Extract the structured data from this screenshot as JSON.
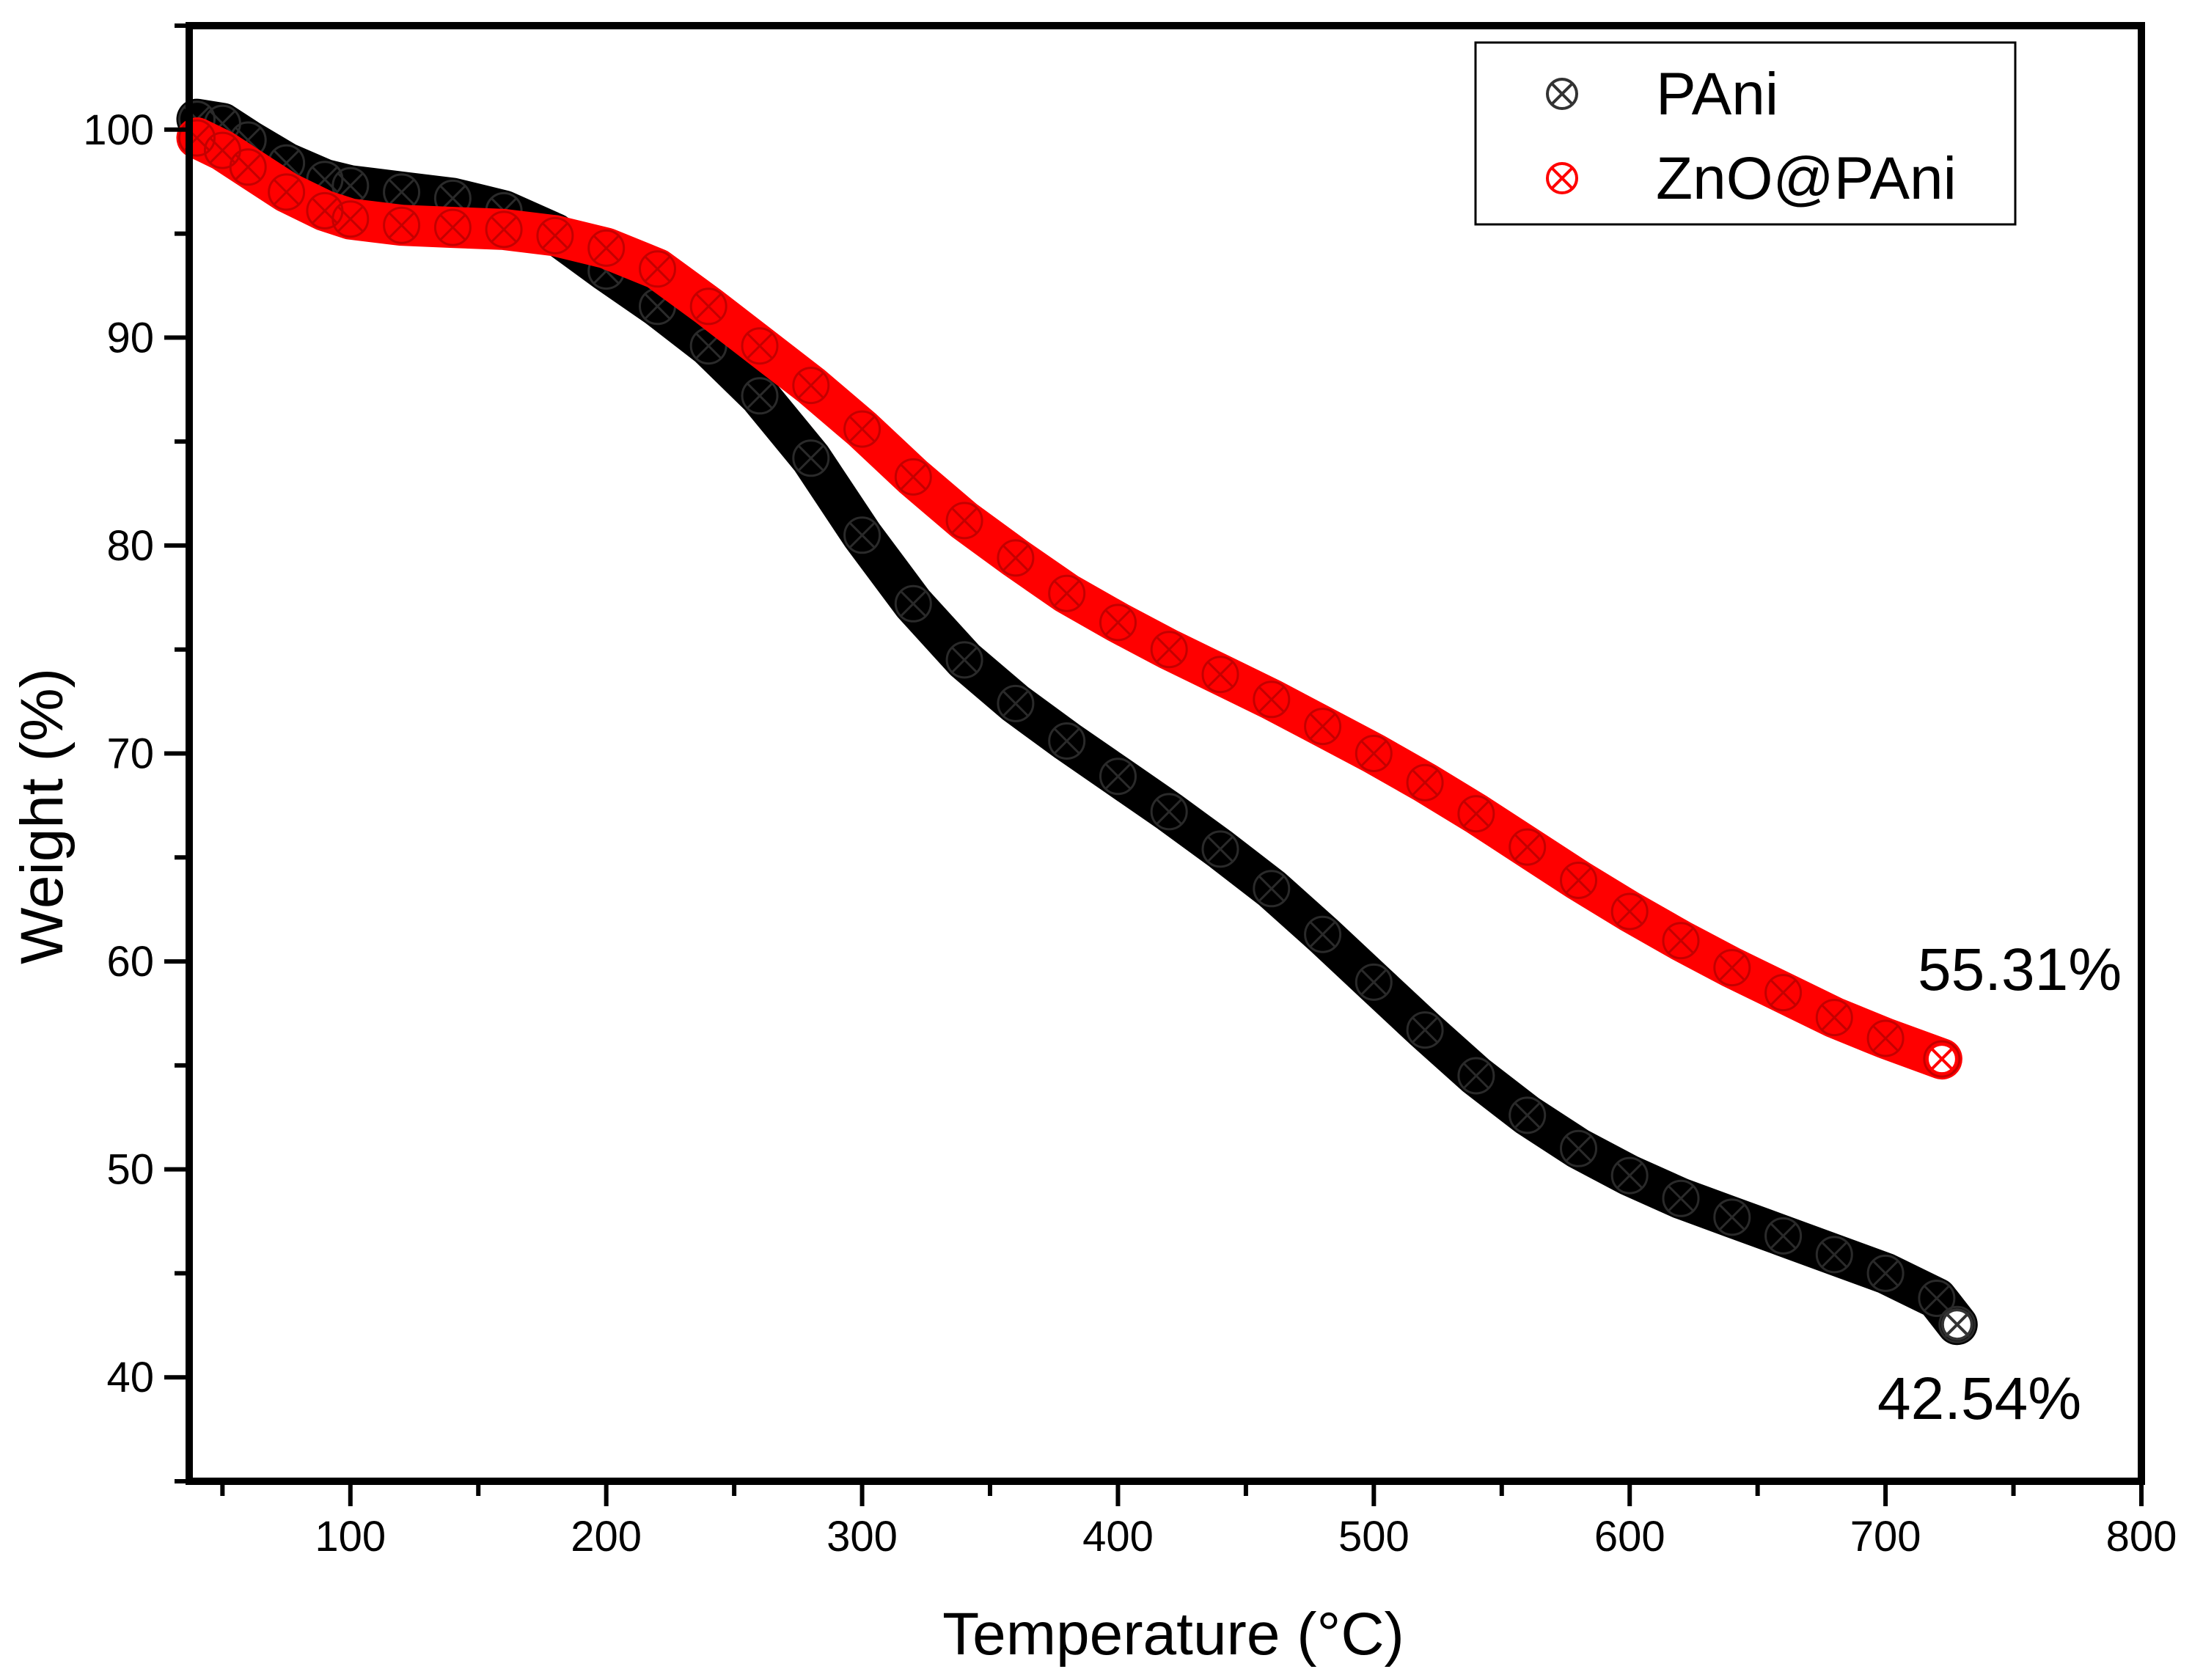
{
  "chart_data": {
    "type": "scatter",
    "title": "",
    "xlabel": "Temperature (°C)",
    "ylabel": "Weight (%)",
    "xlim": [
      37,
      800
    ],
    "ylim": [
      35,
      105
    ],
    "x_ticks": [
      100,
      200,
      300,
      400,
      500,
      600,
      700,
      800
    ],
    "y_ticks": [
      40,
      50,
      60,
      70,
      80,
      90,
      100
    ],
    "x_tick_labels": [
      "100",
      "200",
      "300",
      "400",
      "500",
      "600",
      "700",
      "800"
    ],
    "y_tick_labels": [
      "40",
      "50",
      "60",
      "70",
      "80",
      "90",
      "100"
    ],
    "grid": false,
    "legend_position": "top-right",
    "series": [
      {
        "name": "PAni",
        "color": "#000000",
        "marker": "circle-x",
        "x": [
          40,
          50,
          60,
          75,
          90,
          100,
          120,
          140,
          160,
          180,
          200,
          220,
          240,
          260,
          280,
          300,
          320,
          340,
          360,
          380,
          400,
          420,
          440,
          460,
          480,
          500,
          520,
          540,
          560,
          580,
          600,
          620,
          640,
          660,
          680,
          700,
          720,
          728
        ],
        "y": [
          100.5,
          100.3,
          99.5,
          98.4,
          97.6,
          97.3,
          97.0,
          96.7,
          96.1,
          95.0,
          93.2,
          91.5,
          89.6,
          87.2,
          84.2,
          80.5,
          77.2,
          74.5,
          72.4,
          70.6,
          68.9,
          67.2,
          65.4,
          63.5,
          61.3,
          59.0,
          56.7,
          54.5,
          52.6,
          51.0,
          49.7,
          48.6,
          47.7,
          46.8,
          45.9,
          45.0,
          43.8,
          42.54
        ]
      },
      {
        "name": "ZnO@PAni",
        "color": "#ff0000",
        "marker": "circle-x",
        "x": [
          40,
          50,
          60,
          75,
          90,
          100,
          120,
          140,
          160,
          180,
          200,
          220,
          240,
          260,
          280,
          300,
          320,
          340,
          360,
          380,
          400,
          420,
          440,
          460,
          480,
          500,
          520,
          540,
          560,
          580,
          600,
          620,
          640,
          660,
          680,
          700,
          722
        ],
        "y": [
          99.6,
          99.0,
          98.2,
          97.0,
          96.1,
          95.7,
          95.4,
          95.3,
          95.2,
          94.9,
          94.3,
          93.3,
          91.5,
          89.6,
          87.7,
          85.6,
          83.3,
          81.2,
          79.4,
          77.7,
          76.3,
          75.0,
          73.8,
          72.6,
          71.3,
          70.0,
          68.6,
          67.1,
          65.5,
          63.9,
          62.4,
          61.0,
          59.7,
          58.5,
          57.3,
          56.3,
          55.31
        ]
      }
    ],
    "annotations": [
      {
        "id": "zno",
        "text": "55.31%",
        "x": 722,
        "y": 55.31
      },
      {
        "id": "pani",
        "text": "42.54%",
        "x": 728,
        "y": 42.54
      }
    ]
  }
}
